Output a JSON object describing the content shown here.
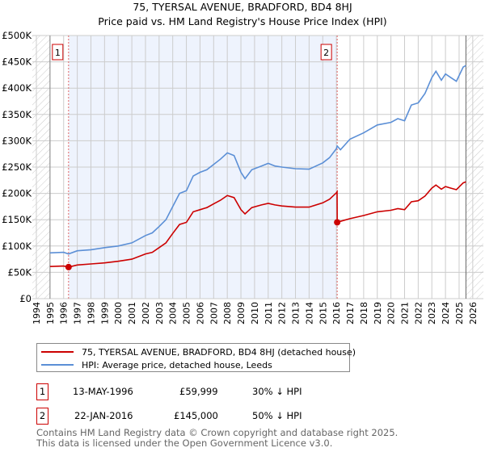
{
  "header": {
    "title": "75, TYERSAL AVENUE, BRADFORD, BD4 8HJ",
    "subtitle": "Price paid vs. HM Land Registry's House Price Index (HPI)"
  },
  "legend": {
    "items": [
      {
        "label": "75, TYERSAL AVENUE, BRADFORD, BD4 8HJ (detached house)",
        "color": "#cc0000"
      },
      {
        "label": "HPI: Average price, detached house, Leeds",
        "color": "#5b8fd6"
      }
    ]
  },
  "sales": [
    {
      "num": "1",
      "date": "13-MAY-1996",
      "price": "£59,999",
      "hpi": "30% ↓ HPI"
    },
    {
      "num": "2",
      "date": "22-JAN-2016",
      "price": "£145,000",
      "hpi": "50% ↓ HPI"
    }
  ],
  "footer": {
    "line1": "Contains HM Land Registry data © Crown copyright and database right 2025.",
    "line2": "This data is licensed under the Open Government Licence v3.0."
  },
  "chart_data": {
    "type": "line",
    "title": "75, TYERSAL AVENUE, BRADFORD, BD4 8HJ",
    "subtitle": "Price paid vs. HM Land Registry's House Price Index (HPI)",
    "xlim": [
      1994,
      2026
    ],
    "ylim": [
      0,
      500000
    ],
    "x_ticks": [
      "1994",
      "1995",
      "1996",
      "1997",
      "1998",
      "1999",
      "2000",
      "2001",
      "2002",
      "2003",
      "2004",
      "2005",
      "2006",
      "2007",
      "2008",
      "2009",
      "2010",
      "2011",
      "2012",
      "2013",
      "2014",
      "2015",
      "2016",
      "2017",
      "2018",
      "2019",
      "2020",
      "2021",
      "2022",
      "2023",
      "2024",
      "2025",
      "2026"
    ],
    "y_ticks": [
      {
        "v": 0,
        "label": "£0"
      },
      {
        "v": 50000,
        "label": "£50K"
      },
      {
        "v": 100000,
        "label": "£100K"
      },
      {
        "v": 150000,
        "label": "£150K"
      },
      {
        "v": 200000,
        "label": "£200K"
      },
      {
        "v": 250000,
        "label": "£250K"
      },
      {
        "v": 300000,
        "label": "£300K"
      },
      {
        "v": 350000,
        "label": "£350K"
      },
      {
        "v": 400000,
        "label": "£400K"
      },
      {
        "v": 450000,
        "label": "£450K"
      },
      {
        "v": 500000,
        "label": "£500K"
      }
    ],
    "grid": true,
    "data_range": [
      1995,
      2025.5
    ],
    "sale_markers": [
      {
        "label": "1",
        "x": 1996.36,
        "y": 59999
      },
      {
        "label": "2",
        "x": 2016.06,
        "y": 145000
      }
    ],
    "series": [
      {
        "name": "75, TYERSAL AVENUE, BRADFORD, BD4 8HJ (detached house)",
        "color": "#cc0000",
        "x": [
          1995,
          1996,
          1996.36,
          1997,
          1998,
          1999,
          2000,
          2001,
          2002,
          2002.5,
          2003,
          2003.5,
          2004,
          2004.5,
          2005,
          2005.5,
          2006,
          2006.5,
          2007,
          2007.5,
          2008,
          2008.5,
          2009,
          2009.3,
          2009.8,
          2010.5,
          2011,
          2011.5,
          2012,
          2013,
          2014,
          2015,
          2015.5,
          2016,
          2016.05,
          2016.06,
          2016.3,
          2017,
          2018,
          2019,
          2020,
          2020.5,
          2021,
          2021.5,
          2022,
          2022.5,
          2023,
          2023.3,
          2023.7,
          2024,
          2024.4,
          2024.8,
          2025.3,
          2025.5
        ],
        "y": [
          61000,
          62000,
          59999,
          64000,
          66000,
          68000,
          71000,
          75000,
          85000,
          88000,
          97000,
          106000,
          124000,
          141000,
          145000,
          165000,
          169000,
          173000,
          180000,
          187000,
          196000,
          192000,
          169000,
          161000,
          173000,
          178000,
          181000,
          178000,
          176000,
          174000,
          174000,
          182000,
          189000,
          201000,
          203000,
          145000,
          147000,
          152000,
          158000,
          165000,
          168000,
          171000,
          169000,
          184000,
          186000,
          195000,
          210000,
          216000,
          208000,
          213000,
          210000,
          207000,
          220000,
          222000
        ]
      },
      {
        "name": "HPI: Average price, detached house, Leeds",
        "color": "#5b8fd6",
        "x": [
          1995,
          1996,
          1996.36,
          1997,
          1998,
          1999,
          2000,
          2001,
          2002,
          2002.5,
          2003,
          2003.5,
          2004,
          2004.5,
          2005,
          2005.5,
          2006,
          2006.5,
          2007,
          2007.5,
          2008,
          2008.5,
          2009,
          2009.3,
          2009.8,
          2010.5,
          2011,
          2011.5,
          2012,
          2013,
          2014,
          2015,
          2015.5,
          2016,
          2016.06,
          2016.3,
          2017,
          2018,
          2019,
          2020,
          2020.5,
          2021,
          2021.5,
          2022,
          2022.5,
          2023,
          2023.3,
          2023.7,
          2024,
          2024.4,
          2024.8,
          2025.3,
          2025.5
        ],
        "y": [
          87000,
          88000,
          85000,
          91000,
          93000,
          97000,
          100000,
          106000,
          120000,
          125000,
          137000,
          150000,
          175000,
          200000,
          205000,
          233000,
          240000,
          245000,
          255000,
          265000,
          277000,
          272000,
          240000,
          228000,
          245000,
          252000,
          257000,
          252000,
          250000,
          247000,
          246000,
          258000,
          268000,
          285000,
          290000,
          283000,
          303000,
          315000,
          330000,
          335000,
          342000,
          338000,
          368000,
          372000,
          390000,
          420000,
          432000,
          415000,
          427000,
          420000,
          413000,
          440000,
          443000
        ]
      }
    ]
  }
}
